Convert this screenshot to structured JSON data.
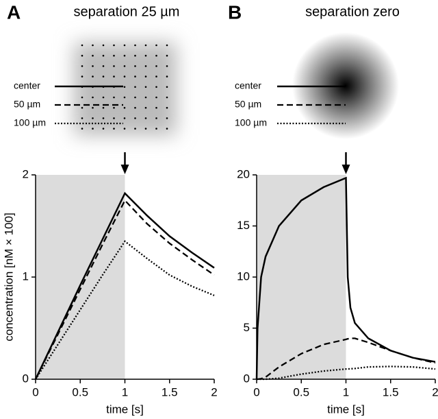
{
  "chart_data": [
    {
      "type": "line",
      "panel": "A",
      "title": "separation 25 µm",
      "ylabel": "concentration [nM × 100]",
      "xlabel": "time [s]",
      "xlim": [
        0,
        2
      ],
      "xticks": [
        0,
        0.5,
        1,
        1.5,
        2
      ],
      "ylim": [
        0,
        2
      ],
      "yticks": [
        0,
        1,
        2
      ],
      "shaded_x": [
        0,
        1
      ],
      "arrow_x": 1,
      "x": [
        0,
        0.25,
        0.5,
        0.75,
        1,
        1.25,
        1.5,
        1.75,
        2
      ],
      "series": [
        {
          "name": "center",
          "color": "#000000",
          "style": "solid",
          "values": [
            0,
            0.46,
            0.92,
            1.37,
            1.82,
            1.6,
            1.4,
            1.24,
            1.09
          ]
        },
        {
          "name": "50 µm",
          "color": "#000000",
          "style": "dashed",
          "values": [
            0,
            0.44,
            0.88,
            1.32,
            1.75,
            1.52,
            1.33,
            1.17,
            1.02
          ]
        },
        {
          "name": "100 µm",
          "color": "#000000",
          "style": "dotted",
          "values": [
            0,
            0.34,
            0.68,
            1.02,
            1.35,
            1.18,
            1.02,
            0.91,
            0.82
          ]
        }
      ]
    },
    {
      "type": "line",
      "panel": "B",
      "title": "separation zero",
      "xlabel": "time [s]",
      "xlim": [
        0,
        2
      ],
      "xticks": [
        0,
        0.5,
        1,
        1.5,
        2
      ],
      "ylim": [
        0,
        20
      ],
      "yticks": [
        0,
        5,
        10,
        15,
        20
      ],
      "shaded_x": [
        0,
        1
      ],
      "arrow_x": 1,
      "x": [
        0,
        0.01,
        0.05,
        0.1,
        0.25,
        0.5,
        0.75,
        1,
        1.02,
        1.05,
        1.1,
        1.25,
        1.5,
        1.75,
        2
      ],
      "series": [
        {
          "name": "center",
          "color": "#000000",
          "style": "solid",
          "values": [
            0,
            5,
            10,
            12,
            15,
            17.5,
            18.8,
            19.7,
            10,
            7,
            5.5,
            4,
            2.8,
            2.1,
            1.7
          ]
        },
        {
          "name": "50 µm",
          "color": "#000000",
          "style": "dashed",
          "values": [
            0,
            0,
            0.05,
            0.2,
            1.2,
            2.5,
            3.4,
            3.9,
            3.95,
            4,
            4,
            3.6,
            2.8,
            2.1,
            1.6
          ]
        },
        {
          "name": "100 µm",
          "color": "#000000",
          "style": "dotted",
          "values": [
            0,
            0,
            0,
            0,
            0.1,
            0.5,
            0.8,
            1,
            1,
            1.02,
            1.05,
            1.2,
            1.25,
            1.2,
            1
          ]
        }
      ]
    }
  ]
}
